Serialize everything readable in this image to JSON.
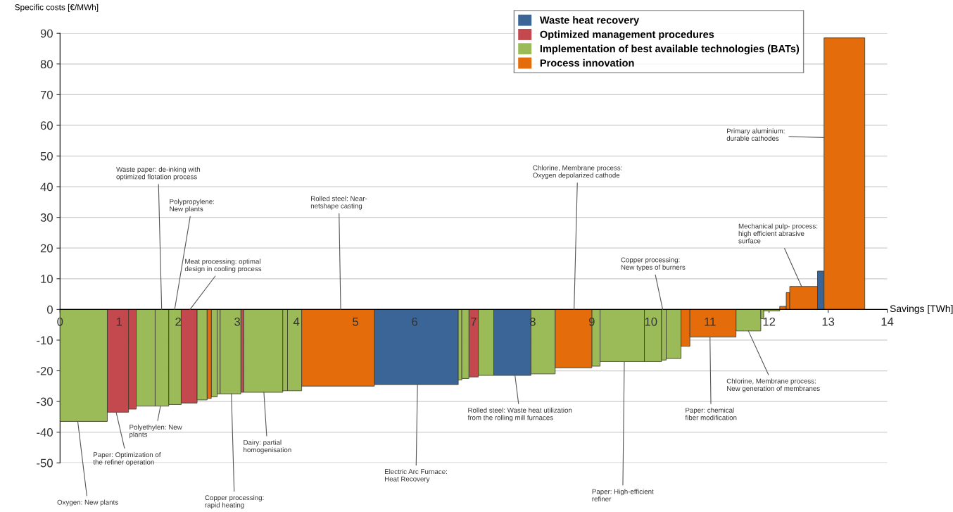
{
  "chart_data": {
    "type": "histogram",
    "xlabel": "Savings [TWh]",
    "ylabel": "Specific costs [€/MWh]",
    "bins": [
      0.0,
      0.8,
      1.16,
      1.29,
      1.61,
      1.84,
      2.05,
      2.32,
      2.49,
      2.56,
      2.66,
      2.71,
      3.06,
      3.11,
      3.77,
      3.85,
      4.09,
      5.32,
      6.74,
      6.8,
      6.92,
      7.08,
      7.34,
      7.97,
      8.38,
      9.0,
      9.14,
      9.89,
      10.18,
      10.26,
      10.51,
      10.66,
      11.44,
      11.86,
      11.91,
      12.18,
      12.29,
      12.35,
      12.82,
      12.93,
      13.62
    ],
    "series": [
      {
        "name": "Waste heat recovery",
        "color": "#3b6597",
        "values": [
          null,
          null,
          null,
          null,
          null,
          null,
          null,
          null,
          null,
          null,
          null,
          null,
          null,
          null,
          null,
          null,
          null,
          -24.5,
          null,
          null,
          null,
          null,
          -21.5,
          null,
          null,
          null,
          null,
          null,
          null,
          null,
          null,
          null,
          null,
          null,
          null,
          null,
          null,
          null,
          12.5,
          null
        ]
      },
      {
        "name": "Optimized management procedures",
        "color": "#c4494f",
        "values": [
          null,
          -33.5,
          -32.5,
          null,
          null,
          null,
          -30.5,
          null,
          null,
          null,
          null,
          null,
          -27,
          null,
          null,
          null,
          null,
          null,
          null,
          null,
          -22,
          null,
          null,
          null,
          null,
          null,
          null,
          null,
          null,
          null,
          null,
          null,
          null,
          null,
          null,
          null,
          null,
          null,
          null,
          null
        ]
      },
      {
        "name": "Implementation of best available technologies (BATs)",
        "color": "#9bbb59",
        "values": [
          -36.5,
          null,
          null,
          -31.5,
          -31.5,
          -31,
          null,
          -29.5,
          null,
          -28.5,
          -27.5,
          -27.5,
          null,
          -27,
          -26.5,
          -26.5,
          null,
          null,
          -23,
          -22.5,
          null,
          -21.5,
          null,
          -21,
          null,
          -18.5,
          -17,
          -17,
          -16.5,
          -16,
          null,
          null,
          -7,
          -3,
          -0.5,
          null,
          null,
          null,
          null,
          null
        ]
      },
      {
        "name": "Process innovation",
        "color": "#e46c0a",
        "values": [
          null,
          null,
          null,
          null,
          null,
          null,
          null,
          null,
          -29,
          null,
          null,
          null,
          null,
          null,
          null,
          null,
          -25,
          null,
          null,
          null,
          null,
          null,
          null,
          null,
          -19,
          null,
          null,
          null,
          null,
          null,
          -12,
          -9,
          null,
          null,
          null,
          1,
          5.5,
          7.5,
          null,
          88.5
        ]
      }
    ],
    "xlim": [
      0,
      14
    ],
    "xticks": [
      0,
      1,
      2,
      3,
      4,
      5,
      6,
      7,
      8,
      9,
      10,
      11,
      12,
      13,
      14
    ],
    "ylim": [
      -50,
      90
    ],
    "yticks": [
      -50,
      -40,
      -30,
      -20,
      -10,
      0,
      10,
      20,
      30,
      40,
      50,
      60,
      70,
      80,
      90
    ],
    "grid": "y",
    "legend": "top right",
    "annotations": [
      {
        "text": "Oxygen: New plants",
        "x": 0.3,
        "y": -36.5
      },
      {
        "text": "Paper: Optimization of\nthe refiner operation",
        "x": 0.95,
        "y": -33.5
      },
      {
        "text": "Polyethylen: New\nplants",
        "x": 1.7,
        "y": -31.5
      },
      {
        "text": "Waste paper: de-inking with\noptimized flotation process",
        "x": 1.72,
        "y": 0
      },
      {
        "text": "Polypropylene:\nNew plants",
        "x": 1.94,
        "y": 0
      },
      {
        "text": "Meat processing: optimal\ndesign in cooling process",
        "x": 2.2,
        "y": 0
      },
      {
        "text": "Copper processing:\nrapid heating",
        "x": 2.9,
        "y": -27.5
      },
      {
        "text": "Dairy: partial\nhomogenisation",
        "x": 3.45,
        "y": -27
      },
      {
        "text": "Rolled steel: Near-\nnetshape casting",
        "x": 4.75,
        "y": 0
      },
      {
        "text": "Electric Arc Furnace:\nHeat Recovery",
        "x": 6.05,
        "y": -24.5
      },
      {
        "text": "Rolled steel: Waste heat utilization\nfrom the rolling mill furnaces",
        "x": 7.7,
        "y": -21.5
      },
      {
        "text": "Chlorine, Membrane process:\nOxygen depolarized cathode",
        "x": 8.7,
        "y": 0
      },
      {
        "text": "Paper: High-efficient\nrefiner",
        "x": 9.55,
        "y": -17
      },
      {
        "text": "Copper processing:\nNew types of burners",
        "x": 10.2,
        "y": 0
      },
      {
        "text": "Paper: chemical\nfiber modification",
        "x": 11.0,
        "y": -9
      },
      {
        "text": "Chlorine, Membrane process:\nNew generation of membranes",
        "x": 11.65,
        "y": -7
      },
      {
        "text": "Mechanical pulp- process:\nhigh efficient abrasive\nsurface",
        "x": 12.55,
        "y": 7.5
      },
      {
        "text": "Primary aluminium:\ndurable cathodes",
        "x": 12.93,
        "y": 56
      }
    ]
  }
}
